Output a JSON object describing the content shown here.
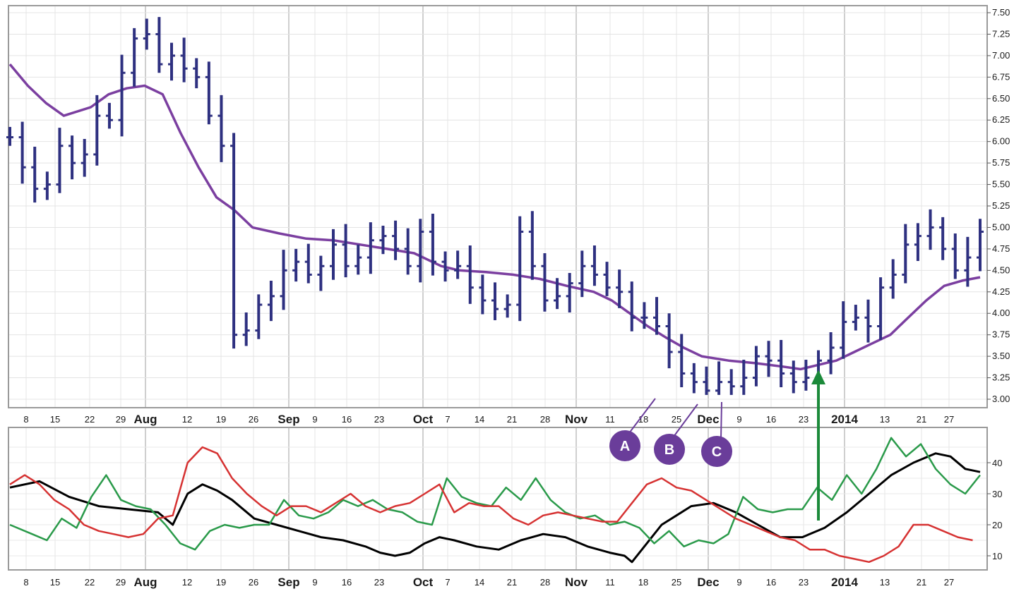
{
  "chart_data": [
    {
      "type": "line",
      "subtype": "ohlc-bar",
      "title": "",
      "ylim": [
        3.0,
        7.5
      ],
      "yticks": [
        "3.00",
        "3.25",
        "3.50",
        "3.75",
        "4.00",
        "4.25",
        "4.50",
        "4.75",
        "5.00",
        "5.25",
        "5.50",
        "5.75",
        "6.00",
        "6.25",
        "6.50",
        "6.75",
        "7.00",
        "7.25",
        "7.50"
      ],
      "y_axis_side": "right",
      "grid": true,
      "x_labels": [
        {
          "label": "8",
          "major": false
        },
        {
          "label": "15",
          "major": false
        },
        {
          "label": "22",
          "major": false
        },
        {
          "label": "29",
          "major": false
        },
        {
          "label": "Aug",
          "major": true
        },
        {
          "label": "12",
          "major": false
        },
        {
          "label": "19",
          "major": false
        },
        {
          "label": "26",
          "major": false
        },
        {
          "label": "Sep",
          "major": true
        },
        {
          "label": "9",
          "major": false
        },
        {
          "label": "16",
          "major": false
        },
        {
          "label": "23",
          "major": false
        },
        {
          "label": "Oct",
          "major": true
        },
        {
          "label": "7",
          "major": false
        },
        {
          "label": "14",
          "major": false
        },
        {
          "label": "21",
          "major": false
        },
        {
          "label": "28",
          "major": false
        },
        {
          "label": "Nov",
          "major": true
        },
        {
          "label": "11",
          "major": false
        },
        {
          "label": "18",
          "major": false
        },
        {
          "label": "25",
          "major": false
        },
        {
          "label": "Dec",
          "major": true
        },
        {
          "label": "9",
          "major": false
        },
        {
          "label": "16",
          "major": false
        },
        {
          "label": "23",
          "major": false
        },
        {
          "label": "2014",
          "major": true
        },
        {
          "label": "13",
          "major": false
        },
        {
          "label": "21",
          "major": false
        },
        {
          "label": "27",
          "major": false
        }
      ],
      "price_series": {
        "color": "#2e3080",
        "approx_close": [
          6.05,
          5.7,
          5.45,
          5.5,
          5.95,
          5.75,
          5.85,
          6.3,
          6.25,
          6.8,
          7.2,
          7.25,
          6.9,
          7.0,
          6.85,
          6.75,
          6.3,
          5.95,
          3.75,
          3.8,
          4.1,
          4.2,
          4.5,
          4.6,
          4.45,
          4.55,
          4.8,
          4.55,
          4.65,
          4.85,
          4.9,
          4.75,
          4.55,
          4.95,
          4.6,
          4.5,
          4.55,
          4.3,
          4.15,
          4.05,
          4.1,
          4.95,
          4.55,
          4.15,
          4.2,
          4.35,
          4.55,
          4.45,
          4.3,
          4.25,
          3.95,
          3.95,
          3.85,
          3.55,
          3.3,
          3.2,
          3.1,
          3.2,
          3.15,
          3.25,
          3.5,
          3.45,
          3.3,
          3.2,
          3.25,
          3.45,
          3.6,
          3.9,
          3.95,
          3.85,
          4.3,
          4.45,
          4.8,
          4.9,
          5.0,
          4.75,
          4.5,
          4.65,
          4.95
        ],
        "range_high": 7.45,
        "range_low": 3.05
      },
      "series": [
        {
          "name": "",
          "color": "#7b3fa0",
          "points": [
            [
              0,
              6.9
            ],
            [
              2,
              6.65
            ],
            [
              4,
              6.45
            ],
            [
              6,
              6.3
            ],
            [
              9,
              6.4
            ],
            [
              11,
              6.55
            ],
            [
              13,
              6.62
            ],
            [
              15,
              6.65
            ],
            [
              17,
              6.55
            ],
            [
              19,
              6.1
            ],
            [
              21,
              5.7
            ],
            [
              23,
              5.35
            ],
            [
              25,
              5.2
            ],
            [
              27,
              5.0
            ],
            [
              30,
              4.93
            ],
            [
              33,
              4.87
            ],
            [
              36,
              4.85
            ],
            [
              39,
              4.8
            ],
            [
              42,
              4.75
            ],
            [
              45,
              4.7
            ],
            [
              48,
              4.55
            ],
            [
              50,
              4.5
            ],
            [
              53,
              4.48
            ],
            [
              56,
              4.45
            ],
            [
              59,
              4.4
            ],
            [
              62,
              4.32
            ],
            [
              65,
              4.25
            ],
            [
              67,
              4.15
            ],
            [
              69,
              4.0
            ],
            [
              71,
              3.85
            ],
            [
              73,
              3.72
            ],
            [
              75,
              3.6
            ],
            [
              77,
              3.5
            ],
            [
              80,
              3.45
            ],
            [
              83,
              3.42
            ],
            [
              86,
              3.38
            ],
            [
              88,
              3.35
            ],
            [
              90,
              3.4
            ],
            [
              92,
              3.45
            ],
            [
              94,
              3.55
            ],
            [
              96,
              3.65
            ],
            [
              98,
              3.75
            ],
            [
              100,
              3.95
            ],
            [
              102,
              4.15
            ],
            [
              104,
              4.32
            ],
            [
              106,
              4.38
            ],
            [
              108,
              4.42
            ]
          ]
        }
      ],
      "annotations": [
        {
          "label": "A",
          "color": "#6a3d9a"
        },
        {
          "label": "B",
          "color": "#6a3d9a"
        },
        {
          "label": "C",
          "color": "#6a3d9a"
        },
        {
          "label": "",
          "type": "up-arrow",
          "color": "#1b8a3a"
        }
      ]
    },
    {
      "type": "line",
      "title": "",
      "ylim": [
        5,
        50
      ],
      "yticks": [
        "10",
        "20",
        "30",
        "40"
      ],
      "y_axis_side": "right",
      "grid": true,
      "series": [
        {
          "name": "",
          "color": "#000000",
          "points": [
            [
              0,
              32
            ],
            [
              4,
              34
            ],
            [
              8,
              29
            ],
            [
              12,
              26
            ],
            [
              16,
              25
            ],
            [
              20,
              24
            ],
            [
              22,
              20
            ],
            [
              24,
              30
            ],
            [
              26,
              33
            ],
            [
              28,
              31
            ],
            [
              30,
              28
            ],
            [
              33,
              22
            ],
            [
              36,
              20
            ],
            [
              39,
              18
            ],
            [
              42,
              16
            ],
            [
              45,
              15
            ],
            [
              48,
              13
            ],
            [
              50,
              11
            ],
            [
              52,
              10
            ],
            [
              54,
              11
            ],
            [
              56,
              14
            ],
            [
              58,
              16
            ],
            [
              60,
              15
            ],
            [
              63,
              13
            ],
            [
              66,
              12
            ],
            [
              69,
              15
            ],
            [
              72,
              17
            ],
            [
              75,
              16
            ],
            [
              78,
              13
            ],
            [
              81,
              11
            ],
            [
              83,
              10
            ],
            [
              84,
              8
            ],
            [
              86,
              14
            ],
            [
              88,
              20
            ],
            [
              90,
              23
            ],
            [
              92,
              26
            ],
            [
              95,
              27
            ],
            [
              98,
              24
            ],
            [
              101,
              20
            ],
            [
              104,
              16
            ],
            [
              107,
              16
            ],
            [
              110,
              19
            ],
            [
              113,
              24
            ],
            [
              116,
              30
            ],
            [
              119,
              36
            ],
            [
              122,
              40
            ],
            [
              125,
              43
            ],
            [
              127,
              42
            ],
            [
              129,
              38
            ],
            [
              131,
              37
            ]
          ]
        },
        {
          "name": "",
          "color": "#2a9a4a",
          "points": [
            [
              0,
              20
            ],
            [
              3,
              17
            ],
            [
              5,
              15
            ],
            [
              7,
              22
            ],
            [
              9,
              19
            ],
            [
              11,
              29
            ],
            [
              13,
              36
            ],
            [
              15,
              28
            ],
            [
              17,
              26
            ],
            [
              19,
              25
            ],
            [
              21,
              20
            ],
            [
              23,
              14
            ],
            [
              25,
              12
            ],
            [
              27,
              18
            ],
            [
              29,
              20
            ],
            [
              31,
              19
            ],
            [
              33,
              20
            ],
            [
              35,
              20
            ],
            [
              37,
              28
            ],
            [
              39,
              23
            ],
            [
              41,
              22
            ],
            [
              43,
              24
            ],
            [
              45,
              28
            ],
            [
              47,
              26
            ],
            [
              49,
              28
            ],
            [
              51,
              25
            ],
            [
              53,
              24
            ],
            [
              55,
              21
            ],
            [
              57,
              20
            ],
            [
              59,
              35
            ],
            [
              61,
              29
            ],
            [
              63,
              27
            ],
            [
              65,
              26
            ],
            [
              67,
              32
            ],
            [
              69,
              28
            ],
            [
              71,
              35
            ],
            [
              73,
              28
            ],
            [
              75,
              24
            ],
            [
              77,
              22
            ],
            [
              79,
              23
            ],
            [
              81,
              20
            ],
            [
              83,
              21
            ],
            [
              85,
              19
            ],
            [
              87,
              14
            ],
            [
              89,
              18
            ],
            [
              91,
              13
            ],
            [
              93,
              15
            ],
            [
              95,
              14
            ],
            [
              97,
              17
            ],
            [
              99,
              29
            ],
            [
              101,
              25
            ],
            [
              103,
              24
            ],
            [
              105,
              25
            ],
            [
              107,
              25
            ],
            [
              109,
              32
            ],
            [
              111,
              28
            ],
            [
              113,
              36
            ],
            [
              115,
              30
            ],
            [
              117,
              38
            ],
            [
              119,
              48
            ],
            [
              121,
              42
            ],
            [
              123,
              46
            ],
            [
              125,
              38
            ],
            [
              127,
              33
            ],
            [
              129,
              30
            ],
            [
              131,
              36
            ]
          ]
        },
        {
          "name": "",
          "color": "#d63232",
          "points": [
            [
              0,
              33
            ],
            [
              2,
              36
            ],
            [
              4,
              33
            ],
            [
              6,
              28
            ],
            [
              8,
              25
            ],
            [
              10,
              20
            ],
            [
              12,
              18
            ],
            [
              14,
              17
            ],
            [
              16,
              16
            ],
            [
              18,
              17
            ],
            [
              20,
              22
            ],
            [
              22,
              23
            ],
            [
              24,
              40
            ],
            [
              26,
              45
            ],
            [
              28,
              43
            ],
            [
              30,
              35
            ],
            [
              32,
              30
            ],
            [
              34,
              26
            ],
            [
              36,
              23
            ],
            [
              38,
              26
            ],
            [
              40,
              26
            ],
            [
              42,
              24
            ],
            [
              44,
              27
            ],
            [
              46,
              30
            ],
            [
              48,
              26
            ],
            [
              50,
              24
            ],
            [
              52,
              26
            ],
            [
              54,
              27
            ],
            [
              56,
              30
            ],
            [
              58,
              33
            ],
            [
              60,
              24
            ],
            [
              62,
              27
            ],
            [
              64,
              26
            ],
            [
              66,
              26
            ],
            [
              68,
              22
            ],
            [
              70,
              20
            ],
            [
              72,
              23
            ],
            [
              74,
              24
            ],
            [
              76,
              23
            ],
            [
              78,
              22
            ],
            [
              80,
              21
            ],
            [
              82,
              21
            ],
            [
              84,
              27
            ],
            [
              86,
              33
            ],
            [
              88,
              35
            ],
            [
              90,
              32
            ],
            [
              92,
              31
            ],
            [
              94,
              28
            ],
            [
              96,
              25
            ],
            [
              98,
              22
            ],
            [
              100,
              20
            ],
            [
              102,
              18
            ],
            [
              104,
              16
            ],
            [
              106,
              15
            ],
            [
              108,
              12
            ],
            [
              110,
              12
            ],
            [
              112,
              10
            ],
            [
              114,
              9
            ],
            [
              116,
              8
            ],
            [
              118,
              10
            ],
            [
              120,
              13
            ],
            [
              122,
              20
            ],
            [
              124,
              20
            ],
            [
              126,
              18
            ],
            [
              128,
              16
            ],
            [
              130,
              15
            ]
          ]
        }
      ]
    }
  ]
}
